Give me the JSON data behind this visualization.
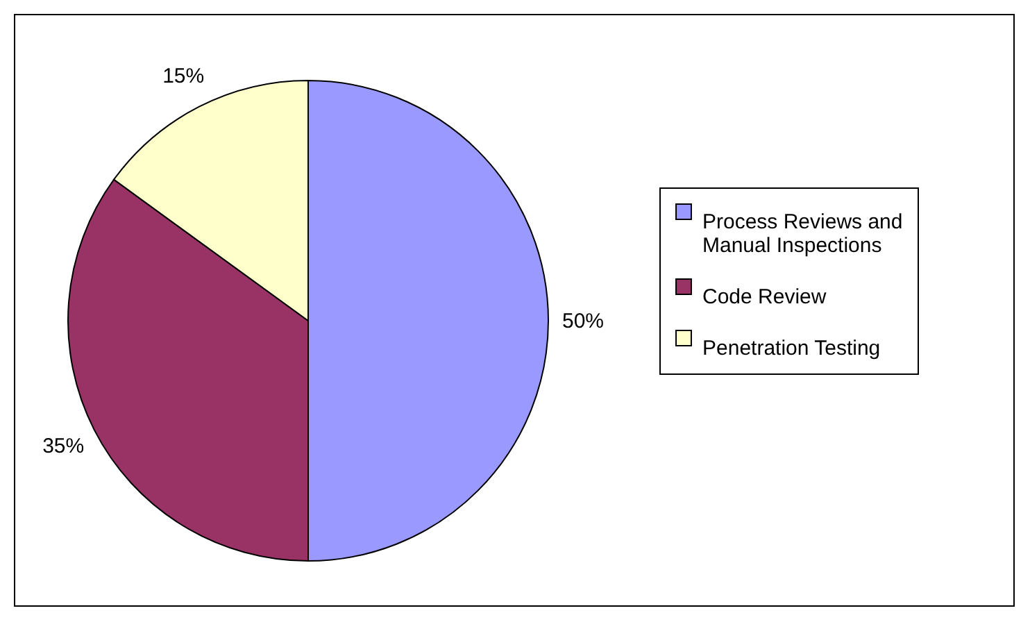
{
  "chart_data": {
    "type": "pie",
    "categories": [
      "Process Reviews and Manual Inspections",
      "Code Review",
      "Penetration Testing"
    ],
    "values": [
      50,
      35,
      15
    ],
    "colors": [
      "#9999ff",
      "#993366",
      "#ffffcc"
    ],
    "value_labels": [
      "50%",
      "35%",
      "15%"
    ],
    "legend": "right"
  }
}
